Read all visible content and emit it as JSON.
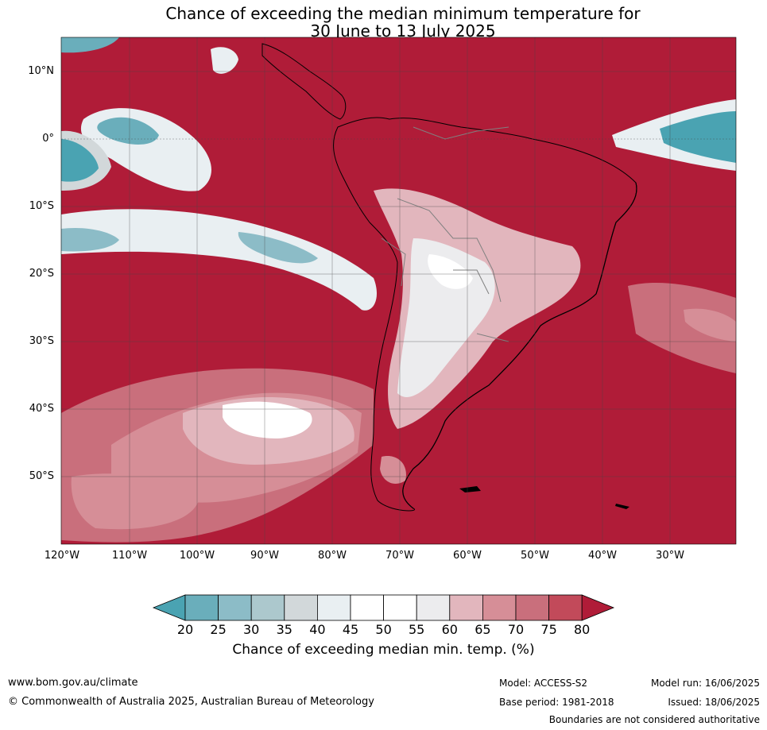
{
  "title": {
    "line1": "Chance of exceeding the median minimum temperature for",
    "line2": "30 June to 13 July 2025"
  },
  "map": {
    "lat_labels": [
      "10°N",
      "0°",
      "10°S",
      "20°S",
      "30°S",
      "40°S",
      "50°S"
    ],
    "lon_labels": [
      "120°W",
      "110°W",
      "100°W",
      "90°W",
      "80°W",
      "70°W",
      "60°W",
      "50°W",
      "40°W",
      "30°W"
    ],
    "colors": {
      "high": "#b01c38",
      "land_outline": "#000000",
      "border": "#808080"
    }
  },
  "colorbar": {
    "ticks": [
      "20",
      "25",
      "30",
      "35",
      "40",
      "45",
      "50",
      "55",
      "60",
      "65",
      "70",
      "75",
      "80"
    ],
    "colors": [
      "#4aa3b2",
      "#6aaebb",
      "#8cbcc7",
      "#acc8cd",
      "#d2d8da",
      "#e9eff2",
      "#ffffff",
      "#ffffff",
      "#ececee",
      "#e2b6bd",
      "#d68e97",
      "#c96f7c",
      "#c24a5a",
      "#b01c38"
    ],
    "label": "Chance of exceeding median min. temp. (%)"
  },
  "footer": {
    "website": "www.bom.gov.au/climate",
    "copyright": "© Commonwealth of Australia 2025, Australian Bureau of Meteorology",
    "model": "Model: ACCESS-S2",
    "base_period": "Base period: 1981-2018",
    "model_run": "Model run: 16/06/2025",
    "issued": "Issued: 18/06/2025",
    "disclaimer": "Boundaries are not considered authoritative"
  }
}
